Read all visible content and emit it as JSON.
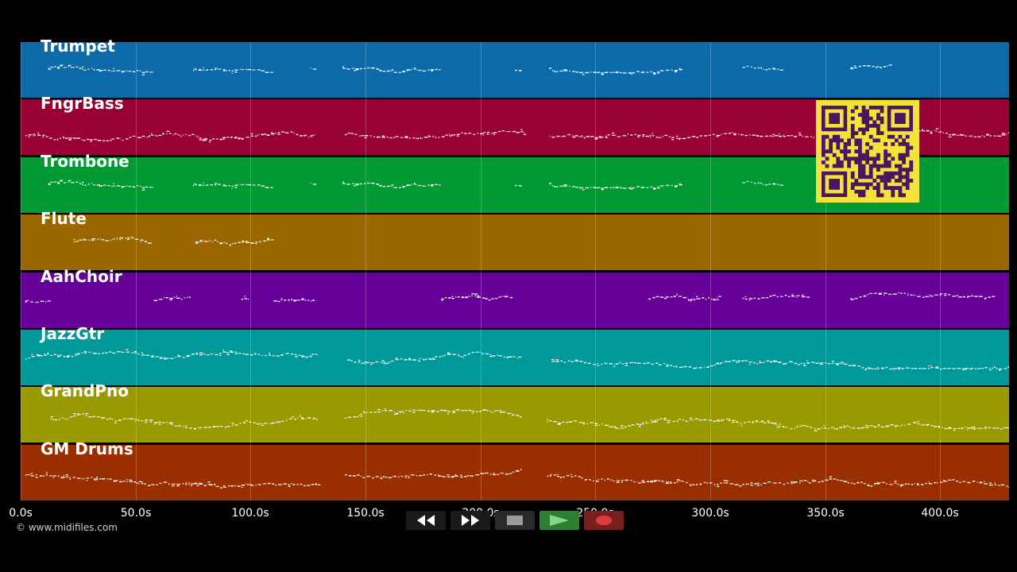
{
  "tracks": [
    {
      "name": "Trumpet",
      "color": "#0d6aa8",
      "seed": 11,
      "segments": [
        [
          12,
          56
        ],
        [
          75,
          110
        ],
        [
          126,
          128
        ],
        [
          140,
          182
        ],
        [
          215,
          218
        ],
        [
          230,
          288
        ],
        [
          314,
          331
        ],
        [
          361,
          378
        ]
      ],
      "band": [
        0.4,
        0.55
      ]
    },
    {
      "name": "FngrBass",
      "color": "#990033",
      "seed": 23,
      "segments": [
        [
          2,
          128
        ],
        [
          141,
          219
        ],
        [
          230,
          430
        ]
      ],
      "band": [
        0.55,
        0.75
      ]
    },
    {
      "name": "Trombone",
      "color": "#009933",
      "seed": 11,
      "segments": [
        [
          12,
          56
        ],
        [
          75,
          110
        ],
        [
          126,
          128
        ],
        [
          140,
          182
        ],
        [
          215,
          218
        ],
        [
          230,
          288
        ],
        [
          314,
          331
        ]
      ],
      "band": [
        0.4,
        0.55
      ]
    },
    {
      "name": "Flute",
      "color": "#996600",
      "seed": 37,
      "segments": [
        [
          23,
          57
        ],
        [
          76,
          109
        ]
      ],
      "band": [
        0.4,
        0.55
      ]
    },
    {
      "name": "AahChoir",
      "color": "#660099",
      "seed": 41,
      "segments": [
        [
          2,
          12
        ],
        [
          58,
          74
        ],
        [
          96,
          99
        ],
        [
          110,
          127
        ],
        [
          183,
          214
        ],
        [
          273,
          304
        ],
        [
          314,
          343
        ],
        [
          361,
          424
        ]
      ],
      "band": [
        0.35,
        0.6
      ]
    },
    {
      "name": "JazzGtr",
      "color": "#009999",
      "seed": 53,
      "segments": [
        [
          2,
          130
        ],
        [
          142,
          218
        ],
        [
          231,
          430
        ]
      ],
      "band": [
        0.38,
        0.7
      ]
    },
    {
      "name": "GrandPno",
      "color": "#999900",
      "seed": 67,
      "segments": [
        [
          13,
          130
        ],
        [
          141,
          218
        ],
        [
          229,
          430
        ]
      ],
      "band": [
        0.4,
        0.75
      ]
    },
    {
      "name": "GM Drums",
      "color": "#992e00",
      "seed": 79,
      "segments": [
        [
          2,
          130
        ],
        [
          141,
          218
        ],
        [
          229,
          430
        ]
      ],
      "band": [
        0.25,
        0.82
      ]
    }
  ],
  "axis": {
    "ticks": [
      {
        "value": 0,
        "label": "0.0s"
      },
      {
        "value": 50,
        "label": "50.0s"
      },
      {
        "value": 100,
        "label": "100.0s"
      },
      {
        "value": 150,
        "label": "150.0s"
      },
      {
        "value": 200,
        "label": "200.0s"
      },
      {
        "value": 250,
        "label": "250.0s"
      },
      {
        "value": 300,
        "label": "300.0s"
      },
      {
        "value": 350,
        "label": "350.0s"
      },
      {
        "value": 400,
        "label": "400.0s"
      }
    ],
    "min": 0,
    "max": 430
  },
  "copyright": "© www.midifiles.com",
  "transport": {
    "rewind": "rewind-icon",
    "fast_forward": "fast-forward-icon",
    "stop": "stop-icon",
    "play": "play-icon",
    "record": "record-icon",
    "play_color": "#2e7d32",
    "record_color": "#7a1f1f"
  },
  "qr_colors": {
    "fg": "#4a1660",
    "bg": "#f4e23b"
  }
}
